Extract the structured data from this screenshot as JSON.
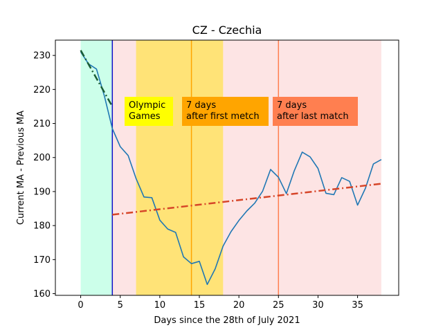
{
  "chart_data": {
    "type": "line",
    "title": "CZ - Czechia",
    "xlabel": "Days since the 28th of July 2021",
    "ylabel": "Current MA - Previous MA",
    "xlim": [
      -3.2,
      40.2
    ],
    "ylim": [
      159.5,
      234.5
    ],
    "xticks": [
      0,
      5,
      10,
      15,
      20,
      25,
      30,
      35
    ],
    "yticks": [
      160,
      170,
      180,
      190,
      200,
      210,
      220,
      230
    ],
    "grid": false,
    "legend": "none",
    "series": [
      {
        "color": "#1f77b4",
        "x": [
          0,
          1,
          2,
          3,
          4,
          5,
          6,
          7,
          8,
          9,
          10,
          11,
          12,
          13,
          14,
          15,
          16,
          17,
          18,
          19,
          20,
          21,
          22,
          23,
          24,
          25,
          26,
          27,
          28,
          29,
          30,
          31,
          32,
          33,
          34,
          35,
          36,
          37,
          38
        ],
        "values": [
          231,
          227.5,
          226,
          218,
          208.5,
          203.2,
          200.6,
          193.8,
          188.4,
          188.2,
          181.6,
          179,
          178,
          170.8,
          168.8,
          169.5,
          162.7,
          167.3,
          174,
          178.2,
          181.5,
          184.3,
          186.6,
          190.1,
          196.5,
          194.2,
          189.4,
          196.1,
          201.6,
          200.2,
          196.8,
          189.5,
          189.1,
          194.1,
          193,
          186,
          191,
          198.1,
          199.4
        ]
      }
    ],
    "trend_lines": [
      {
        "color": "#1a5c34",
        "style": "dash-dot",
        "x": [
          0,
          4
        ],
        "values": [
          231.5,
          215
        ]
      },
      {
        "color": "#d64528",
        "style": "dash-dot",
        "x": [
          4,
          38
        ],
        "values": [
          183.2,
          192.3
        ]
      }
    ],
    "spans": [
      {
        "x": [
          0,
          4
        ],
        "color": "#ccffea"
      },
      {
        "x": [
          4,
          38
        ],
        "color": "#fde4e4"
      },
      {
        "x": [
          7,
          18
        ],
        "color": "#ffe377"
      }
    ],
    "vlines": [
      {
        "x": 4,
        "color": "#1010c8"
      },
      {
        "x": 14,
        "color": "#ffa500"
      },
      {
        "x": 25,
        "color": "#ff7f50"
      }
    ],
    "annotations": [
      {
        "lines": [
          "Olympic",
          "Games"
        ],
        "color": "#ffff00"
      },
      {
        "lines": [
          "7 days",
          "after first metch"
        ],
        "color": "#ffa500"
      },
      {
        "lines": [
          "7 days",
          "after last match"
        ],
        "color": "#ff7f50"
      }
    ]
  }
}
